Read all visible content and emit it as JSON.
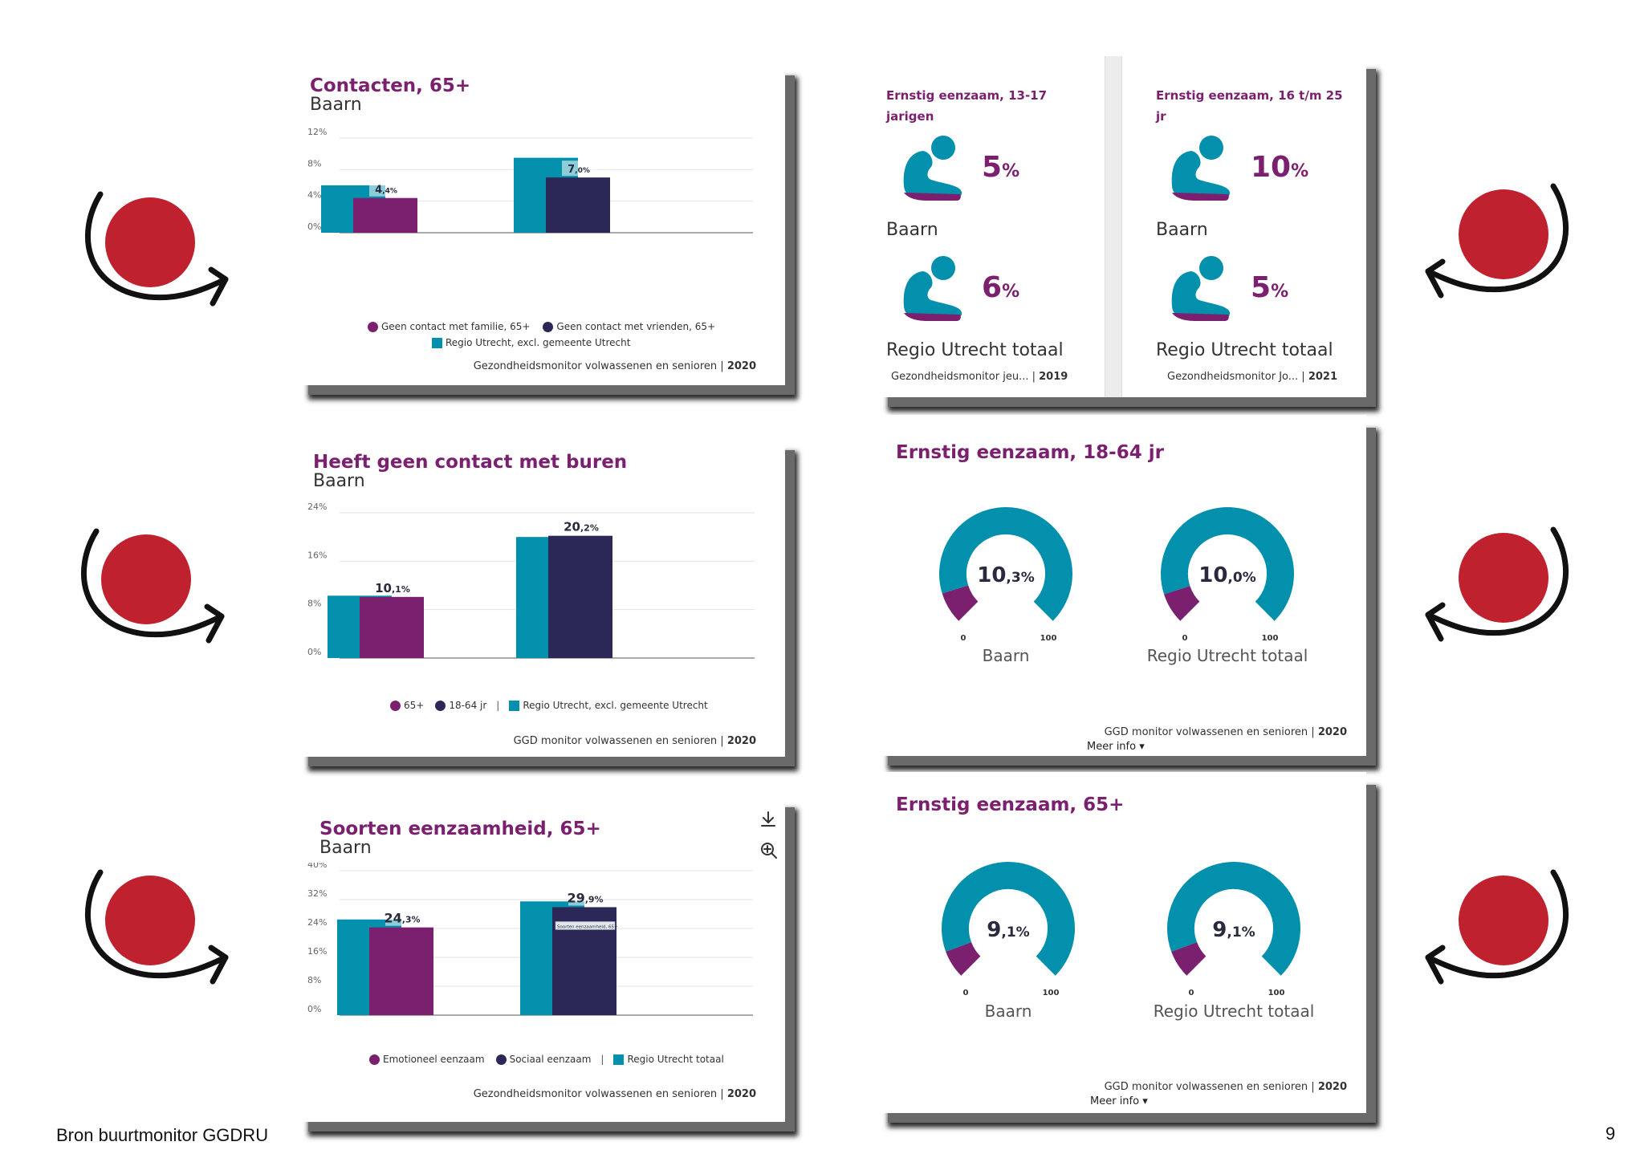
{
  "colors": {
    "purple": "#7b1f6f",
    "navy": "#2b2858",
    "teal": "#0390ac",
    "red": "#c0212f"
  },
  "footer": {
    "source": "Bron buurtmonitor GGDRU",
    "page_number": "9"
  },
  "chart_data": [
    {
      "type": "bar",
      "title": "Contacten, 65+",
      "subtitle": "Baarn",
      "ylim": [
        0,
        12
      ],
      "yticks": [
        "12%",
        "8%",
        "4%",
        "0%"
      ],
      "series": [
        {
          "name": "Geen contact met familie, 65+",
          "values": [
            4.4,
            null
          ]
        },
        {
          "name": "Geen contact met vrienden, 65+",
          "values": [
            null,
            7.0
          ]
        },
        {
          "name": "Regio Utrecht, excl. gemeente Utrecht",
          "values": [
            6.0,
            9.5
          ]
        }
      ],
      "data_labels": [
        {
          "int": "4",
          "dec": ",4%"
        },
        {
          "int": "7",
          "dec": ",0%"
        }
      ],
      "source": "Gezondheidsmonitor volwassenen en senioren",
      "year": "2020"
    },
    {
      "type": "bar",
      "title": "Heeft geen contact met buren",
      "subtitle": "Baarn",
      "ylim": [
        0,
        24
      ],
      "yticks": [
        "24%",
        "16%",
        "8%",
        "0%"
      ],
      "series": [
        {
          "name": "65+",
          "values": [
            10.1,
            null
          ]
        },
        {
          "name": "18-64 jr",
          "values": [
            null,
            20.2
          ]
        },
        {
          "name": "Regio Utrecht, excl. gemeente Utrecht",
          "values": [
            10.3,
            20.0
          ]
        }
      ],
      "data_labels": [
        {
          "int": "10",
          "dec": ",1%"
        },
        {
          "int": "20",
          "dec": ",2%"
        }
      ],
      "source": "GGD monitor volwassenen en senioren",
      "year": "2020"
    },
    {
      "type": "bar",
      "title": "Soorten eenzaamheid, 65+",
      "subtitle": "Baarn",
      "ylim": [
        0,
        40
      ],
      "yticks": [
        "40%",
        "32%",
        "24%",
        "16%",
        "8%",
        "0%"
      ],
      "series": [
        {
          "name": "Emotioneel eenzaam",
          "values": [
            24.3,
            null
          ]
        },
        {
          "name": "Sociaal eenzaam",
          "values": [
            null,
            29.9
          ]
        },
        {
          "name": "Regio Utrecht totaal",
          "values": [
            26.5,
            31.5
          ]
        }
      ],
      "data_labels": [
        {
          "int": "24",
          "dec": ",3%"
        },
        {
          "int": "29",
          "dec": ",9%"
        }
      ],
      "tooltip": "Soorten eenzaamheid, 65+",
      "source": "Gezondheidsmonitor volwassenen en senioren",
      "year": "2020"
    },
    {
      "type": "stat",
      "panels": [
        {
          "title": "Ernstig eenzaam, 13-17 jarigen",
          "items": [
            {
              "value": "5",
              "unit": "%",
              "label": "Baarn"
            },
            {
              "value": "6",
              "unit": "%",
              "label": "Regio Utrecht totaal"
            }
          ],
          "source": "Gezondheidsmonitor jeu...",
          "year": "2019"
        },
        {
          "title": "Ernstig eenzaam, 16 t/m 25 jr",
          "items": [
            {
              "value": "10",
              "unit": "%",
              "label": "Baarn"
            },
            {
              "value": "5",
              "unit": "%",
              "label": "Regio Utrecht totaal"
            }
          ],
          "source": "Gezondheidsmonitor Jo...",
          "year": "2021"
        }
      ]
    },
    {
      "type": "gauge",
      "title": "Ernstig eenzaam, 18-64 jr",
      "range": [
        0,
        100
      ],
      "min_label": "0",
      "max_label": "100",
      "gauges": [
        {
          "label": "Baarn",
          "value": 10.3,
          "int": "10",
          "dec": ",3%"
        },
        {
          "label": "Regio Utrecht totaal",
          "value": 10.0,
          "int": "10",
          "dec": ",0%"
        }
      ],
      "source": "GGD monitor volwassenen en senioren",
      "year": "2020",
      "more": "Meer info"
    },
    {
      "type": "gauge",
      "title": "Ernstig eenzaam, 65+",
      "range": [
        0,
        100
      ],
      "min_label": "0",
      "max_label": "100",
      "gauges": [
        {
          "label": "Baarn",
          "value": 9.1,
          "int": "9",
          "dec": ",1%"
        },
        {
          "label": "Regio Utrecht totaal",
          "value": 9.1,
          "int": "9",
          "dec": ",1%"
        }
      ],
      "source": "GGD monitor volwassenen en senioren",
      "year": "2020",
      "more": "Meer info"
    }
  ]
}
